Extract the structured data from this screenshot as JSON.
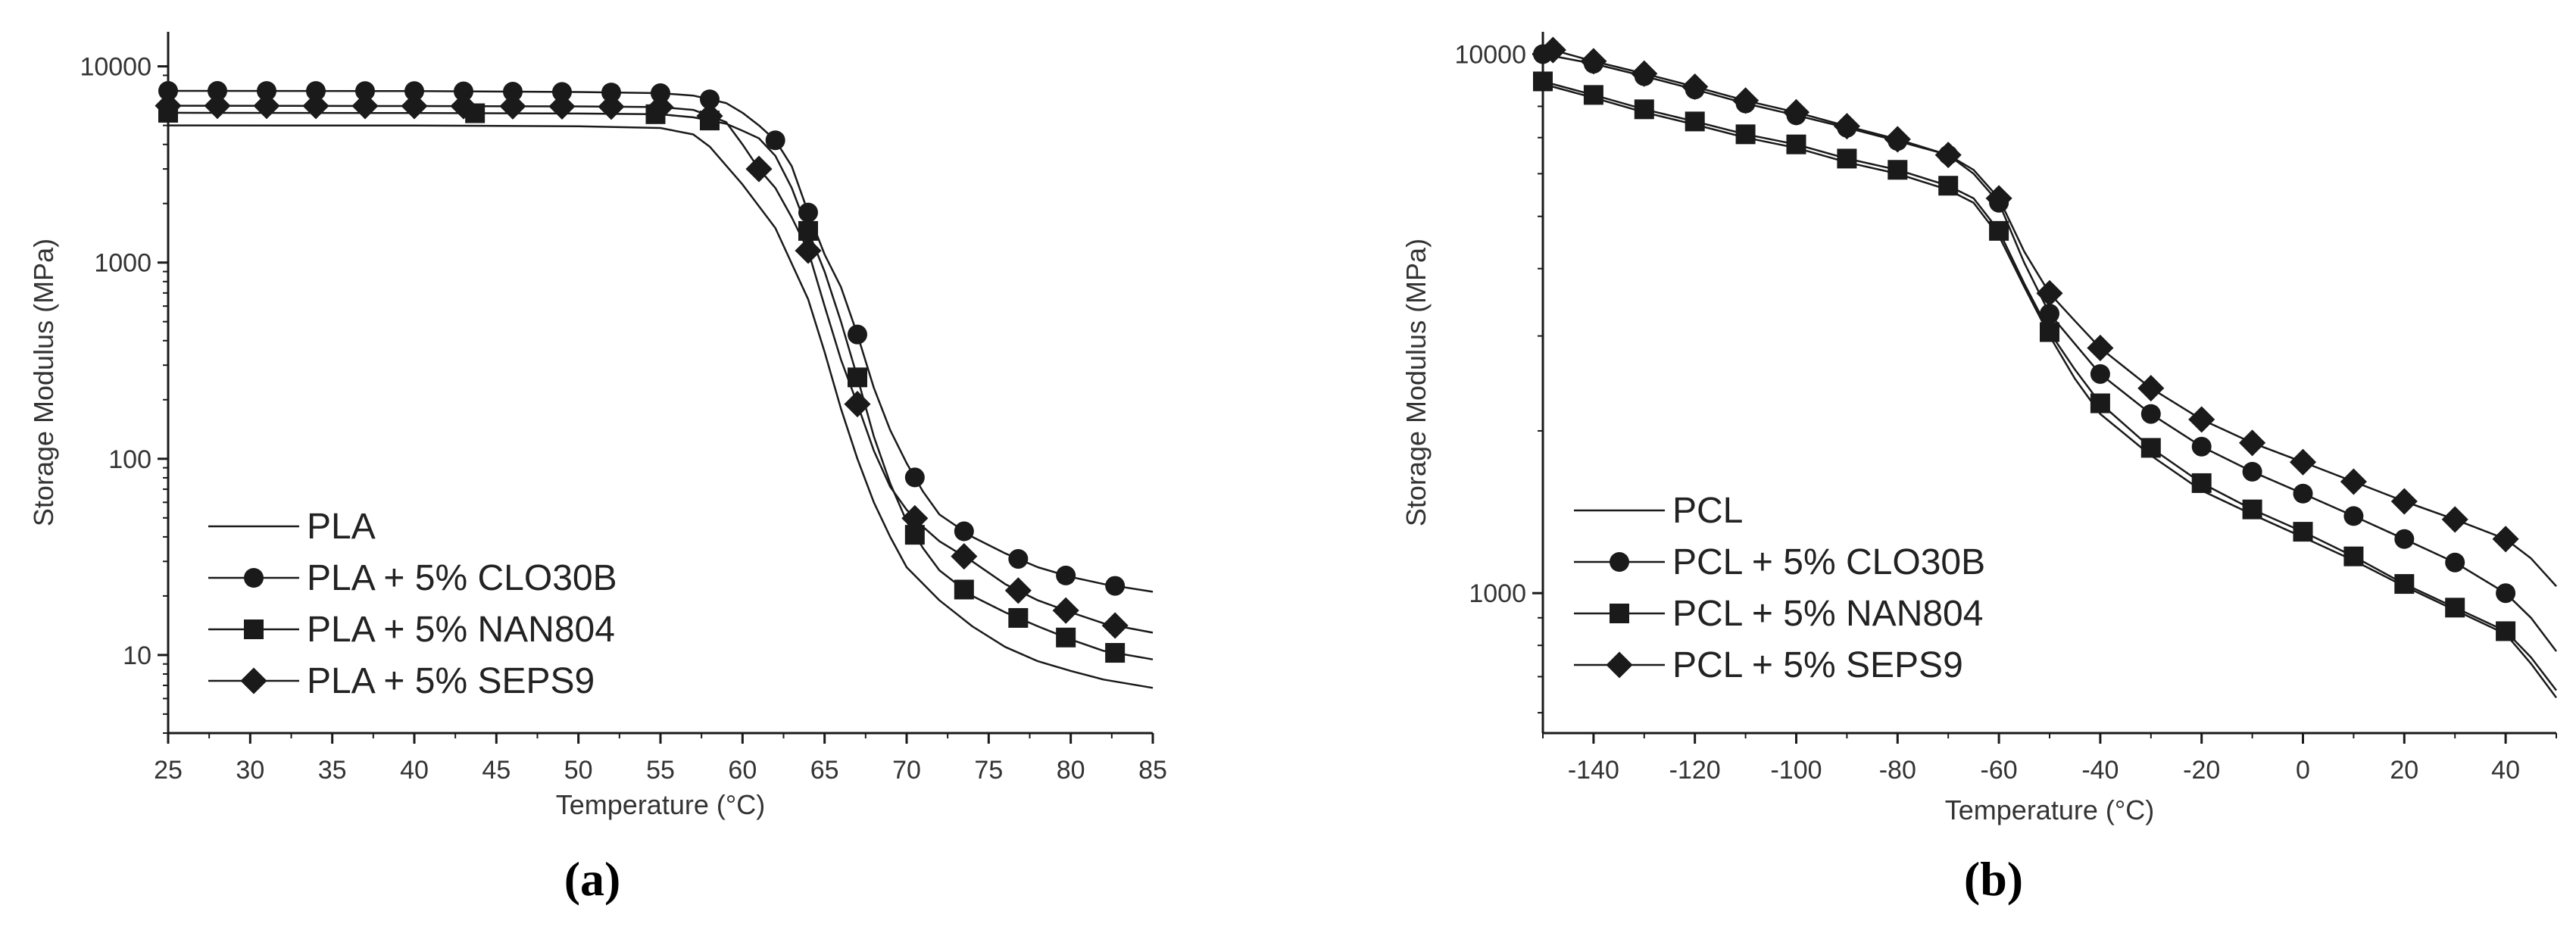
{
  "colors": {
    "line": "#1a1a1a",
    "axis": "#1a1a1a",
    "text": "#333333",
    "background": "#ffffff"
  },
  "chart_data": [
    {
      "panel": "(a)",
      "type": "line",
      "yscale": "log",
      "xlabel": "Temperature (°C)",
      "ylabel": "Storage Modulus (MPa)",
      "xlim": [
        25,
        85
      ],
      "ylim": [
        4,
        15000
      ],
      "xticks": [
        25,
        30,
        35,
        40,
        45,
        50,
        55,
        60,
        65,
        70,
        75,
        80,
        85
      ],
      "yticks": [
        10,
        100,
        1000,
        10000
      ],
      "legend_position": "lower-left",
      "series": [
        {
          "name": "PLA",
          "marker": "none",
          "x": [
            25,
            40,
            50,
            55,
            57,
            58,
            60,
            62,
            64,
            65,
            66,
            67,
            68,
            69,
            70,
            72,
            74,
            76,
            78,
            80,
            82,
            85
          ],
          "y": [
            5000,
            4990,
            4950,
            4850,
            4500,
            3900,
            2500,
            1500,
            650,
            350,
            180,
            100,
            60,
            40,
            28,
            19,
            14,
            11,
            9.3,
            8.3,
            7.5,
            6.8
          ]
        },
        {
          "name": "PLA + 5% CLO30B",
          "marker": "circle",
          "x": [
            25,
            40,
            50,
            55,
            57,
            59,
            60,
            61,
            62,
            63,
            64,
            65,
            66,
            67,
            68,
            69,
            70,
            71,
            72,
            74,
            76,
            78,
            80,
            82,
            85
          ],
          "y": [
            7500,
            7480,
            7400,
            7300,
            7100,
            6500,
            5800,
            5000,
            4200,
            3100,
            1800,
            1100,
            750,
            430,
            230,
            140,
            95,
            68,
            52,
            40,
            33,
            28,
            25,
            23,
            21
          ],
          "marker_x": [
            25,
            28,
            31,
            34,
            37,
            40,
            43,
            46,
            49,
            52,
            55,
            58,
            62,
            64,
            67,
            70.5,
            73.5,
            76.8,
            79.7,
            82.7
          ]
        },
        {
          "name": "PLA + 5% NAN804",
          "marker": "square",
          "x": [
            25,
            40,
            50,
            55,
            57,
            59,
            60,
            61,
            62,
            63,
            64,
            65,
            66,
            67,
            68,
            69,
            70,
            71,
            72,
            74,
            76,
            78,
            80,
            82,
            85
          ],
          "y": [
            5800,
            5780,
            5750,
            5700,
            5500,
            5100,
            4700,
            4300,
            3500,
            2400,
            1450,
            900,
            500,
            260,
            130,
            75,
            48,
            35,
            27,
            20,
            16.5,
            14,
            12,
            10.5,
            9.5
          ],
          "marker_x": [
            25,
            43.7,
            54.7,
            58,
            64,
            67,
            70.5,
            73.5,
            76.8,
            79.7,
            82.7
          ]
        },
        {
          "name": "PLA + 5% SEPS9",
          "marker": "diamond",
          "x": [
            25,
            40,
            50,
            55,
            57,
            59,
            60,
            61,
            62,
            63,
            64,
            65,
            66,
            67,
            68,
            69,
            70,
            71,
            72,
            74,
            76,
            78,
            80,
            82,
            85
          ],
          "y": [
            6300,
            6280,
            6250,
            6200,
            6000,
            5200,
            4000,
            3000,
            2400,
            1700,
            1150,
            600,
            320,
            190,
            110,
            72,
            55,
            45,
            38,
            30,
            23,
            19,
            16.5,
            14.5,
            13
          ],
          "marker_x": [
            25,
            28,
            31,
            34,
            37,
            40,
            43,
            46,
            49,
            52,
            55,
            58,
            61,
            64,
            67,
            70.5,
            73.5,
            76.8,
            79.7,
            82.7
          ]
        }
      ],
      "label": "(a)"
    },
    {
      "panel": "(b)",
      "type": "line",
      "yscale": "log",
      "xlabel": "Temperature (°C)",
      "ylabel": "Storage Modulus (MPa)",
      "xlim": [
        -150,
        50
      ],
      "ylim": [
        550,
        11000
      ],
      "xticks": [
        -140,
        -120,
        -100,
        -80,
        -60,
        -40,
        -20,
        0,
        20,
        40
      ],
      "yticks": [
        1000,
        10000
      ],
      "legend_position": "lower-left",
      "series": [
        {
          "name": "PCL",
          "marker": "none",
          "x": [
            -150,
            -140,
            -130,
            -120,
            -110,
            -100,
            -90,
            -80,
            -70,
            -65,
            -60,
            -55,
            -50,
            -45,
            -40,
            -30,
            -20,
            -10,
            0,
            10,
            20,
            30,
            40,
            45,
            50
          ],
          "y": [
            8800,
            8300,
            7800,
            7400,
            7000,
            6700,
            6300,
            6000,
            5600,
            5300,
            4600,
            3700,
            3000,
            2500,
            2150,
            1800,
            1550,
            1400,
            1270,
            1150,
            1030,
            930,
            840,
            740,
            640
          ]
        },
        {
          "name": "PCL + 5% CLO30B",
          "marker": "circle",
          "x": [
            -150,
            -140,
            -130,
            -120,
            -110,
            -100,
            -90,
            -80,
            -70,
            -65,
            -60,
            -55,
            -50,
            -45,
            -40,
            -30,
            -20,
            -10,
            0,
            10,
            20,
            30,
            40,
            45,
            50
          ],
          "y": [
            10000,
            9600,
            9100,
            8600,
            8100,
            7700,
            7300,
            6900,
            6500,
            6000,
            5300,
            4100,
            3300,
            2900,
            2550,
            2150,
            1870,
            1680,
            1530,
            1390,
            1260,
            1140,
            1000,
            900,
            780
          ],
          "marker_x": [
            -150,
            -140,
            -130,
            -120,
            -110,
            -100,
            -90,
            -80,
            -70,
            -60,
            -50,
            -40,
            -30,
            -20,
            -10,
            0,
            10,
            20,
            30,
            40
          ]
        },
        {
          "name": "PCL + 5% NAN804",
          "marker": "square",
          "x": [
            -150,
            -140,
            -130,
            -120,
            -110,
            -100,
            -90,
            -80,
            -70,
            -65,
            -60,
            -55,
            -50,
            -45,
            -40,
            -30,
            -20,
            -10,
            0,
            10,
            20,
            30,
            40,
            45,
            50
          ],
          "y": [
            8900,
            8400,
            7900,
            7500,
            7100,
            6800,
            6400,
            6100,
            5700,
            5400,
            4700,
            3750,
            3050,
            2600,
            2250,
            1860,
            1600,
            1430,
            1300,
            1170,
            1040,
            940,
            850,
            760,
            660
          ],
          "marker_x": [
            -150,
            -140,
            -130,
            -120,
            -110,
            -100,
            -90,
            -80,
            -70,
            -60,
            -50,
            -40,
            -30,
            -20,
            -10,
            0,
            10,
            20,
            30,
            40
          ]
        },
        {
          "name": "PCL + 5% SEPS9",
          "marker": "diamond",
          "x": [
            -150,
            -140,
            -130,
            -120,
            -110,
            -100,
            -90,
            -80,
            -70,
            -65,
            -60,
            -55,
            -50,
            -45,
            -40,
            -30,
            -20,
            -10,
            0,
            10,
            20,
            30,
            40,
            45,
            50
          ],
          "y": [
            10300,
            9700,
            9200,
            8700,
            8200,
            7800,
            7350,
            6950,
            6500,
            6100,
            5400,
            4300,
            3600,
            3200,
            2850,
            2400,
            2100,
            1900,
            1750,
            1610,
            1480,
            1370,
            1260,
            1160,
            1030
          ],
          "marker_x": [
            -148,
            -140,
            -130,
            -120,
            -110,
            -100,
            -90,
            -80,
            -70,
            -60,
            -50,
            -40,
            -30,
            -20,
            -10,
            0,
            10,
            20,
            30,
            40
          ]
        }
      ],
      "label": "(b)"
    }
  ]
}
